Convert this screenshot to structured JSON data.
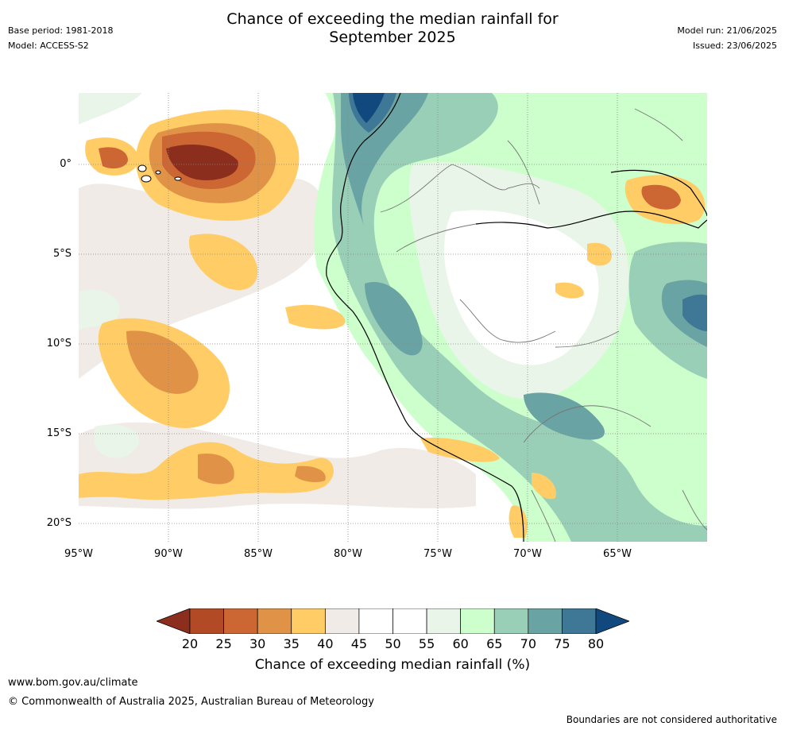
{
  "title": {
    "line1": "Chance of exceeding the median rainfall for",
    "line2": "September 2025"
  },
  "meta_left": {
    "base_period": "Base period: 1981-2018",
    "model": "Model: ACCESS-S2"
  },
  "meta_right": {
    "model_run": "Model run: 21/06/2025",
    "issued": "Issued: 23/06/2025"
  },
  "map": {
    "lat_ticks": [
      "0°",
      "5°S",
      "10°S",
      "15°S",
      "20°S"
    ],
    "lon_ticks": [
      "95°W",
      "90°W",
      "85°W",
      "80°W",
      "75°W",
      "70°W",
      "65°W"
    ]
  },
  "colorbar": {
    "labels": [
      "20",
      "25",
      "30",
      "35",
      "40",
      "45",
      "50",
      "55",
      "60",
      "65",
      "70",
      "75",
      "80"
    ],
    "colors": [
      "#8b2e1e",
      "#b24a26",
      "#cc6633",
      "#e09347",
      "#ffcc66",
      "#f0ebe6",
      "#ffffff",
      "#ffffff",
      "#e8f5e8",
      "#ccffcc",
      "#99cfb7",
      "#6aa3a3",
      "#3f7796",
      "#11497f"
    ],
    "title": "Chance of exceeding median rainfall (%)"
  },
  "footer": {
    "url": "www.bom.gov.au/climate",
    "copyright": "© Commonwealth of Australia 2025, Australian Bureau of Meteorology",
    "note": "Boundaries are not considered authoritative"
  }
}
